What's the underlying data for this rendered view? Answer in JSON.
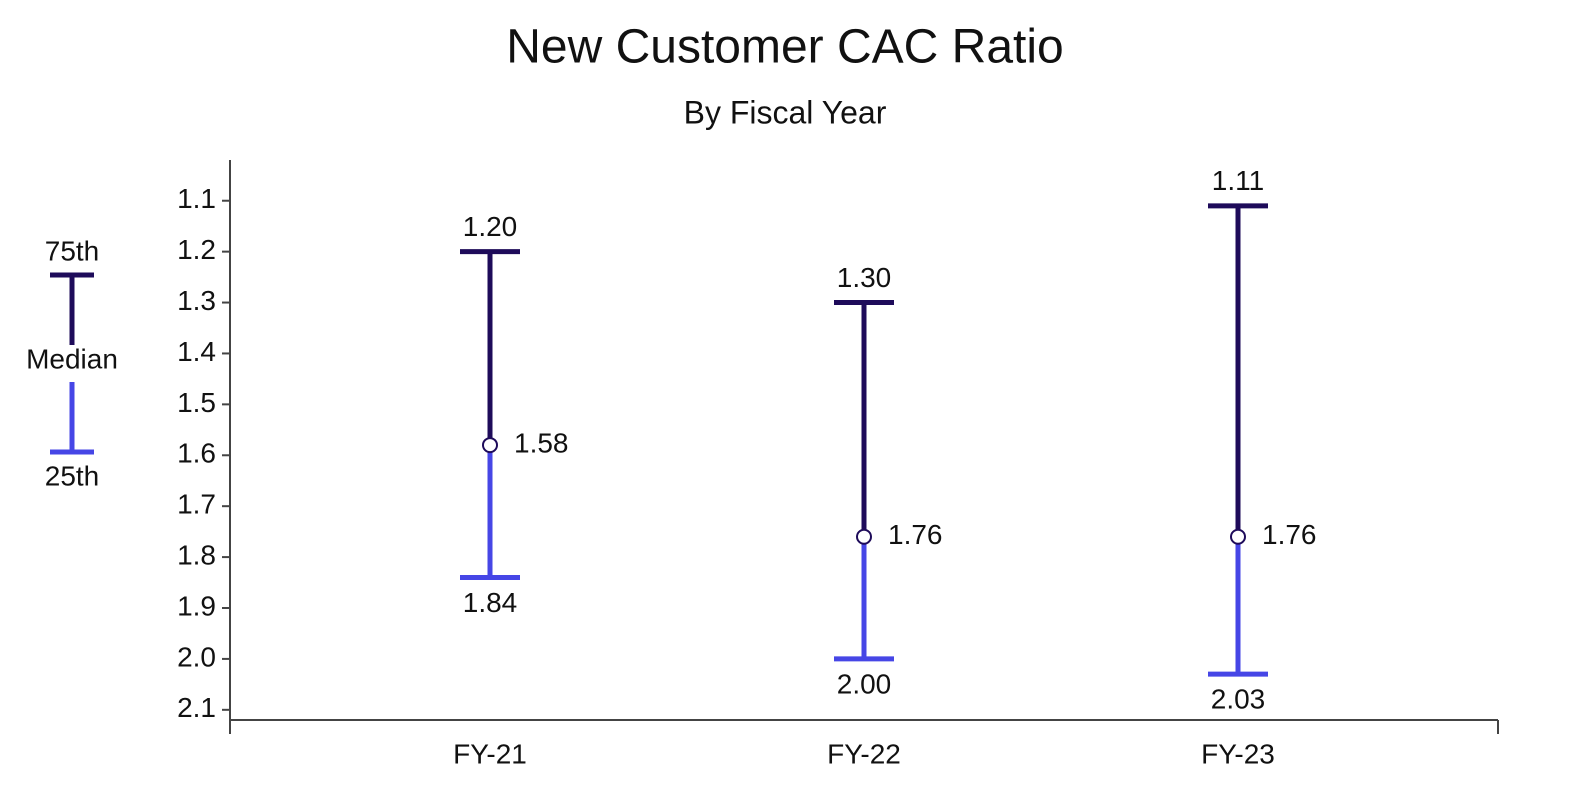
{
  "chart_data": {
    "type": "range",
    "title": "New Customer CAC Ratio",
    "subtitle": "By Fiscal Year",
    "categories": [
      "FY-21",
      "FY-22",
      "FY-23"
    ],
    "series": [
      {
        "name": "75th",
        "color": "#1e0b5a",
        "values": [
          1.2,
          1.3,
          1.11
        ],
        "value_labels": [
          "1.20",
          "1.30",
          "1.11"
        ]
      },
      {
        "name": "Median",
        "color": "#1e0b5a",
        "values": [
          1.58,
          1.76,
          1.76
        ],
        "value_labels": [
          "1.58",
          "1.76",
          "1.76"
        ]
      },
      {
        "name": "25th",
        "color": "#4646e6",
        "values": [
          1.84,
          2.0,
          2.03
        ],
        "value_labels": [
          "1.84",
          "2.00",
          "2.03"
        ]
      }
    ],
    "ylim": [
      1.02,
      2.12
    ],
    "y_inverted": true,
    "yticks": [
      1.1,
      1.2,
      1.3,
      1.4,
      1.5,
      1.6,
      1.7,
      1.8,
      1.9,
      {
        "value": 2,
        "label": "2.0"
      },
      2.1
    ]
  }
}
